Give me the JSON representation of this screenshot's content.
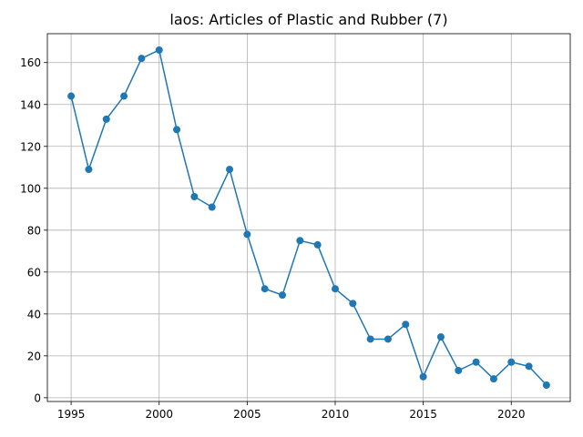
{
  "chart_data": {
    "type": "line",
    "title": "laos: Articles of Plastic and Rubber (7)",
    "xlabel": "",
    "ylabel": "",
    "x": [
      1995,
      1996,
      1997,
      1998,
      1999,
      2000,
      2001,
      2002,
      2003,
      2004,
      2005,
      2006,
      2007,
      2008,
      2009,
      2010,
      2011,
      2012,
      2013,
      2014,
      2015,
      2016,
      2017,
      2018,
      2019,
      2020,
      2021,
      2022
    ],
    "series": [
      {
        "values": [
          144,
          109,
          133,
          144,
          162,
          166,
          128,
          96,
          91,
          109,
          78,
          52,
          49,
          75,
          73,
          52,
          45,
          28,
          28,
          35,
          10,
          29,
          13,
          17,
          9,
          17,
          15,
          6
        ],
        "color": "#1f77b4",
        "marker": "circle"
      }
    ],
    "xlim": [
      1993.65,
      2023.35
    ],
    "ylim": [
      -1.8,
      173.8
    ],
    "xticks": [
      1995,
      2000,
      2005,
      2010,
      2015,
      2020
    ],
    "xtick_labels": [
      "1995",
      "2000",
      "2005",
      "2010",
      "2015",
      "2020"
    ],
    "yticks": [
      0,
      20,
      40,
      60,
      80,
      100,
      120,
      140,
      160
    ],
    "ytick_labels": [
      "0",
      "20",
      "40",
      "60",
      "80",
      "100",
      "120",
      "140",
      "160"
    ],
    "grid": true,
    "legend": "none"
  }
}
